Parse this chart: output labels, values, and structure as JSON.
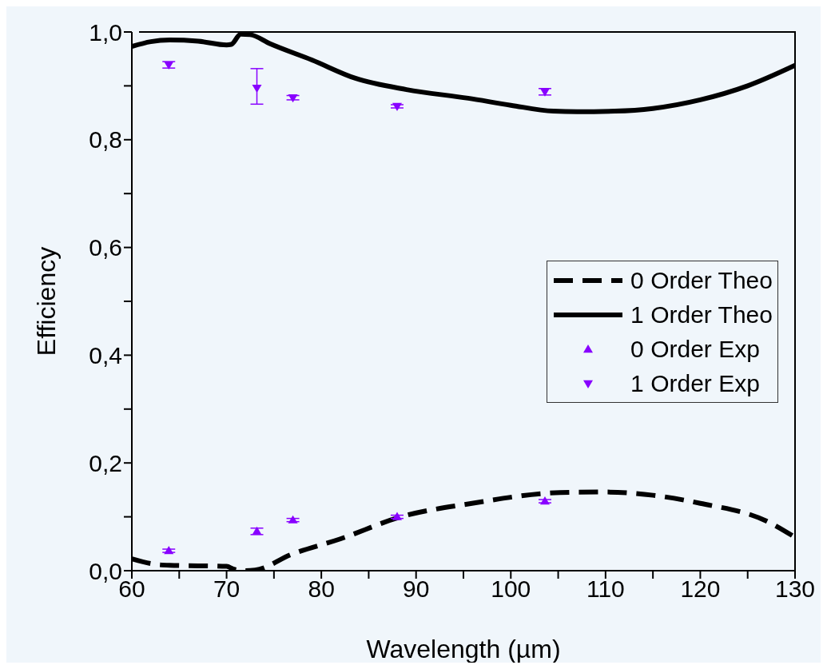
{
  "chart_data": {
    "type": "line",
    "xlabel": "Wavelength (µm)",
    "ylabel": "Efficiency",
    "xlim": [
      60,
      130
    ],
    "xticks": [
      60,
      {
        "value": 65,
        "label": null
      },
      70,
      {
        "value": 75,
        "label": null
      },
      80,
      {
        "value": 85,
        "label": null
      },
      90,
      {
        "value": 95,
        "label": null
      },
      100,
      {
        "value": 105,
        "label": null
      },
      110,
      {
        "value": 115,
        "label": null
      },
      120,
      {
        "value": 125,
        "label": null
      },
      130
    ],
    "ylim": [
      0,
      1
    ],
    "yticks": [
      {
        "value": 0,
        "label": "0,0"
      },
      {
        "value": 0.1,
        "label": null
      },
      {
        "value": 0.2,
        "label": "0,2"
      },
      {
        "value": 0.3,
        "label": null
      },
      {
        "value": 0.4,
        "label": "0,4"
      },
      {
        "value": 0.5,
        "label": null
      },
      {
        "value": 0.6,
        "label": "0,6"
      },
      {
        "value": 0.7,
        "label": null
      },
      {
        "value": 0.8,
        "label": "0,8"
      },
      {
        "value": 0.9,
        "label": null
      },
      {
        "value": 1,
        "label": "1,0"
      }
    ],
    "grid": false,
    "legend": "right",
    "series": [
      {
        "name": "0 Order Theo",
        "color": "#000000",
        "line_style": "dashed",
        "marker": "none",
        "x": [
          60,
          62.4,
          64,
          67,
          70,
          70.7,
          71.6,
          73,
          76.8,
          82,
          88.4,
          95.9,
          105.2,
          109.9,
          115,
          120,
          127,
          130
        ],
        "values": [
          0.022,
          0.012,
          0.01,
          0.009,
          0.008,
          0.003,
          0.0,
          0.001,
          0.03,
          0.059,
          0.1,
          0.125,
          0.145,
          0.146,
          0.14,
          0.125,
          0.092,
          0.062
        ]
      },
      {
        "name": "1 Order Theo",
        "color": "#000000",
        "line_style": "solid",
        "marker": "none",
        "x": [
          60,
          62,
          64,
          67,
          70,
          70.5,
          71.5,
          72.5,
          74.6,
          79,
          83.6,
          89,
          95.5,
          100,
          104.5,
          107,
          111,
          115,
          120,
          125,
          130
        ],
        "values": [
          0.973,
          0.982,
          0.985,
          0.983,
          0.976,
          0.977,
          0.996,
          0.995,
          0.978,
          0.948,
          0.914,
          0.893,
          0.877,
          0.864,
          0.853,
          0.852,
          0.853,
          0.858,
          0.874,
          0.9,
          0.938
        ]
      },
      {
        "name": "0 Order Exp",
        "type": "scatter",
        "color": "#8800ff",
        "marker": "triangle",
        "x": [
          63.9,
          73.2,
          77,
          88,
          103.6
        ],
        "values": [
          0.037,
          0.073,
          0.094,
          0.1,
          0.129
        ],
        "errors": [
          0.003,
          0.006,
          0.003,
          0.003,
          0.003
        ]
      },
      {
        "name": "1 Order Exp",
        "type": "scatter",
        "color": "#8800ff",
        "marker": "triangle-down",
        "x": [
          63.9,
          73.2,
          77,
          88,
          103.6
        ],
        "values": [
          0.939,
          0.896,
          0.878,
          0.862,
          0.889
        ],
        "errors": [
          0.006,
          [
            0.866,
            0.932
          ],
          0.004,
          0.003,
          0.006
        ]
      }
    ]
  }
}
